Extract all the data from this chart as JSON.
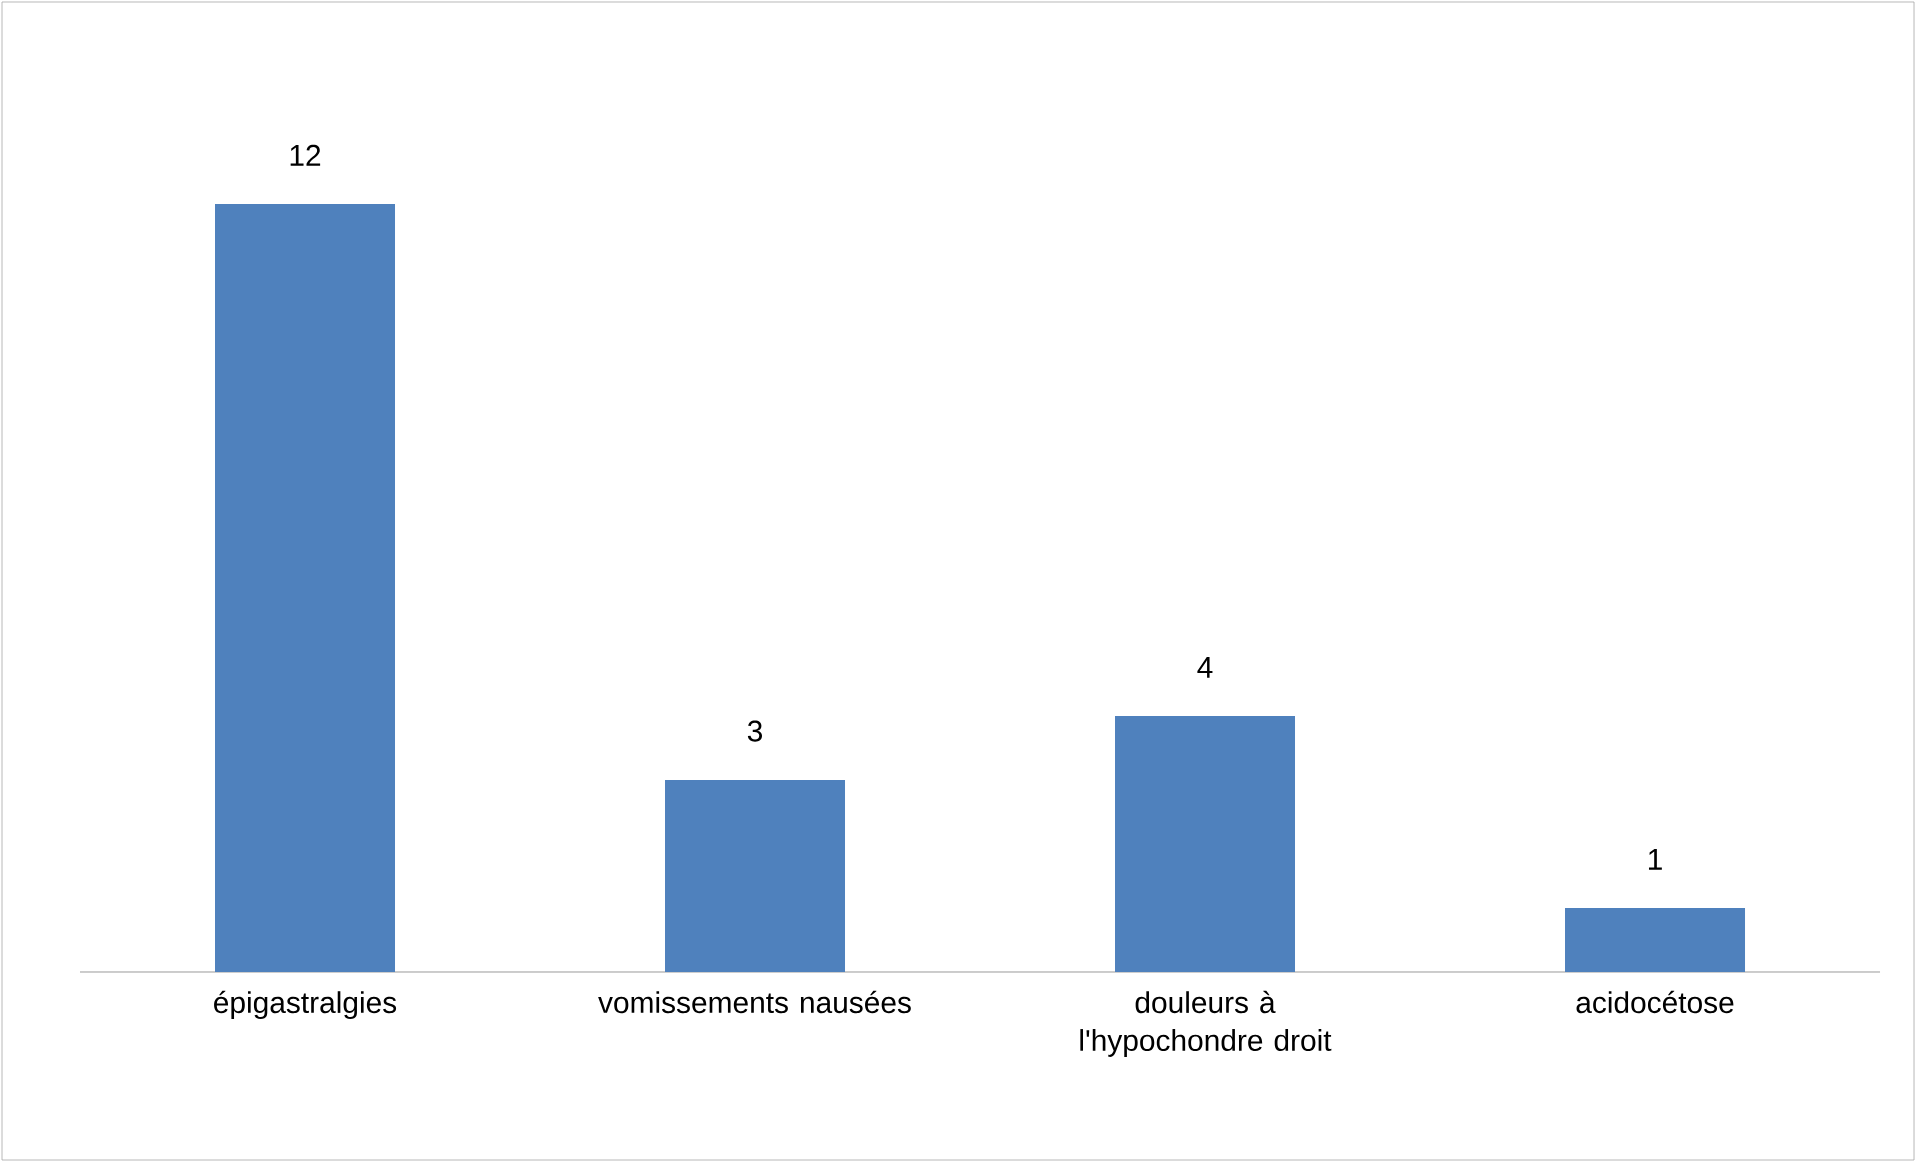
{
  "chart_data": {
    "type": "bar",
    "categories": [
      "épigastralgies",
      "vomissements nausées",
      "douleurs à l'hypochondre droit",
      "acidocétose"
    ],
    "values": [
      12,
      3,
      4,
      1
    ],
    "color": "#4f81bd",
    "data_labels": true
  }
}
